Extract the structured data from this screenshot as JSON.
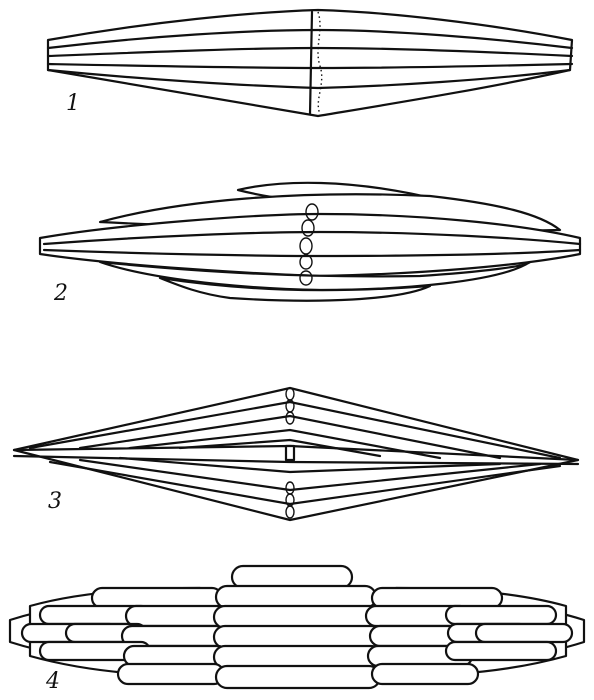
{
  "figures": [
    {
      "id": "1",
      "label": "1"
    },
    {
      "id": "2",
      "label": "2"
    },
    {
      "id": "3",
      "label": "3"
    },
    {
      "id": "4",
      "label": "4"
    }
  ],
  "colors": {
    "ink": "#111111",
    "paper": "#ffffff"
  }
}
